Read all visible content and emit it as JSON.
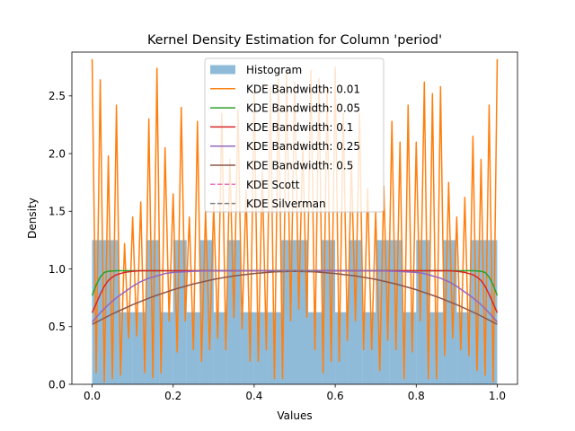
{
  "chart_data": {
    "type": "bar+line",
    "title": "Kernel Density Estimation for Column 'period'",
    "xlabel": "Values",
    "ylabel": "Density",
    "xlim": [
      -0.05,
      1.05
    ],
    "ylim": [
      0,
      2.88
    ],
    "xticks": [
      "0.0",
      "0.2",
      "0.4",
      "0.6",
      "0.8",
      "1.0"
    ],
    "yticks": [
      "0.0",
      "0.5",
      "1.0",
      "1.5",
      "2.0",
      "2.5"
    ],
    "grid": false,
    "legend_position": "upper-center",
    "histogram": {
      "name": "Histogram",
      "color": "#1f77b4",
      "alpha": 0.5,
      "bin_edges": [
        0.0,
        0.0333,
        0.0667,
        0.1,
        0.1333,
        0.1667,
        0.2,
        0.2333,
        0.2667,
        0.3,
        0.3333,
        0.3667,
        0.4,
        0.4333,
        0.4667,
        0.5,
        0.5333,
        0.5667,
        0.6,
        0.6333,
        0.6667,
        0.7,
        0.7333,
        0.7667,
        0.8,
        0.8333,
        0.8667,
        0.9,
        0.9333,
        0.9667,
        1.0
      ],
      "values": [
        1.25,
        1.25,
        0.625,
        0.625,
        1.25,
        0.625,
        1.25,
        0.625,
        1.25,
        0.625,
        1.25,
        0.625,
        0.625,
        0.625,
        1.25,
        1.25,
        0.625,
        1.25,
        0.625,
        1.25,
        0.625,
        1.25,
        1.25,
        0.625,
        1.25,
        0.625,
        1.25,
        0.625,
        1.25,
        1.25
      ]
    },
    "series": [
      {
        "name": "KDE Bandwidth: 0.01",
        "color": "#ff7f0e",
        "dashed": false,
        "x": [
          0.0,
          0.01,
          0.02,
          0.03,
          0.04,
          0.05,
          0.06,
          0.07,
          0.08,
          0.09,
          0.1,
          0.11,
          0.12,
          0.13,
          0.14,
          0.15,
          0.16,
          0.17,
          0.18,
          0.19,
          0.2,
          0.21,
          0.22,
          0.23,
          0.24,
          0.25,
          0.26,
          0.27,
          0.28,
          0.29,
          0.3,
          0.31,
          0.32,
          0.33,
          0.34,
          0.35,
          0.36,
          0.37,
          0.38,
          0.39,
          0.4,
          0.41,
          0.42,
          0.43,
          0.44,
          0.45,
          0.46,
          0.47,
          0.48,
          0.49,
          0.5,
          0.51,
          0.52,
          0.53,
          0.54,
          0.55,
          0.56,
          0.57,
          0.58,
          0.59,
          0.6,
          0.61,
          0.62,
          0.63,
          0.64,
          0.65,
          0.66,
          0.67,
          0.68,
          0.69,
          0.7,
          0.71,
          0.72,
          0.73,
          0.74,
          0.75,
          0.76,
          0.77,
          0.78,
          0.79,
          0.8,
          0.81,
          0.82,
          0.83,
          0.84,
          0.85,
          0.86,
          0.87,
          0.88,
          0.89,
          0.9,
          0.91,
          0.92,
          0.93,
          0.94,
          0.95,
          0.96,
          0.97,
          0.98,
          0.99,
          1.0
        ],
        "y": [
          2.82,
          0.1,
          2.64,
          0.02,
          1.98,
          0.05,
          2.42,
          0.08,
          1.22,
          0.4,
          1.45,
          0.42,
          1.58,
          0.1,
          2.3,
          0.06,
          2.74,
          0.1,
          2.05,
          0.55,
          1.65,
          0.28,
          2.4,
          0.55,
          1.45,
          0.3,
          2.28,
          0.2,
          1.5,
          0.3,
          1.55,
          0.4,
          2.35,
          0.3,
          1.95,
          0.58,
          2.38,
          0.48,
          1.68,
          0.2,
          2.55,
          0.2,
          1.85,
          0.3,
          2.58,
          0.05,
          2.65,
          0.05,
          2.72,
          0.55,
          2.62,
          0.65,
          2.1,
          0.58,
          2.72,
          0.3,
          2.65,
          0.1,
          2.58,
          0.2,
          2.75,
          0.2,
          2.35,
          0.38,
          1.92,
          0.55,
          2.35,
          0.3,
          1.7,
          0.3,
          1.5,
          0.12,
          1.72,
          0.38,
          2.28,
          0.3,
          2.1,
          0.05,
          2.42,
          0.28,
          2.1,
          0.55,
          2.62,
          0.05,
          2.52,
          0.05,
          2.58,
          0.25,
          1.75,
          0.4,
          1.45,
          0.3,
          1.62,
          0.25,
          2.15,
          0.12,
          1.95,
          0.08,
          2.42,
          0.02,
          2.82
        ]
      },
      {
        "name": "KDE Bandwidth: 0.05",
        "color": "#2ca02c",
        "dashed": false,
        "x": [
          0.0,
          0.01,
          0.02,
          0.03,
          0.04,
          0.06,
          0.08,
          0.1,
          0.2,
          0.5,
          0.8,
          0.9,
          0.92,
          0.94,
          0.96,
          0.97,
          0.98,
          0.99,
          1.0
        ],
        "y": [
          0.77,
          0.86,
          0.93,
          0.97,
          0.98,
          0.985,
          0.985,
          0.985,
          0.985,
          0.985,
          0.985,
          0.985,
          0.985,
          0.985,
          0.98,
          0.97,
          0.93,
          0.86,
          0.77
        ]
      },
      {
        "name": "KDE Bandwidth: 0.1",
        "color": "#d62728",
        "dashed": false,
        "x": [
          0.0,
          0.01,
          0.02,
          0.03,
          0.04,
          0.05,
          0.06,
          0.08,
          0.1,
          0.12,
          0.15,
          0.2,
          0.5,
          0.8,
          0.85,
          0.88,
          0.9,
          0.92,
          0.94,
          0.95,
          0.96,
          0.97,
          0.98,
          0.99,
          1.0
        ],
        "y": [
          0.62,
          0.7,
          0.78,
          0.85,
          0.9,
          0.93,
          0.95,
          0.97,
          0.98,
          0.985,
          0.985,
          0.985,
          0.985,
          0.985,
          0.985,
          0.985,
          0.98,
          0.97,
          0.95,
          0.93,
          0.9,
          0.85,
          0.78,
          0.7,
          0.62
        ]
      },
      {
        "name": "KDE Bandwidth: 0.25",
        "color": "#9467bd",
        "dashed": false,
        "x": [
          0.0,
          0.02,
          0.04,
          0.06,
          0.08,
          0.1,
          0.12,
          0.14,
          0.16,
          0.18,
          0.2,
          0.25,
          0.3,
          0.5,
          0.7,
          0.75,
          0.8,
          0.82,
          0.84,
          0.86,
          0.88,
          0.9,
          0.92,
          0.94,
          0.96,
          0.98,
          1.0
        ],
        "y": [
          0.54,
          0.62,
          0.69,
          0.75,
          0.8,
          0.85,
          0.89,
          0.92,
          0.94,
          0.96,
          0.97,
          0.98,
          0.985,
          0.985,
          0.985,
          0.98,
          0.97,
          0.96,
          0.94,
          0.92,
          0.89,
          0.85,
          0.8,
          0.75,
          0.69,
          0.62,
          0.54
        ]
      },
      {
        "name": "KDE Bandwidth: 0.5",
        "color": "#8c564b",
        "dashed": false,
        "x": [
          0.0,
          0.05,
          0.1,
          0.15,
          0.2,
          0.25,
          0.3,
          0.35,
          0.4,
          0.45,
          0.5,
          0.55,
          0.6,
          0.65,
          0.7,
          0.75,
          0.8,
          0.85,
          0.9,
          0.95,
          1.0
        ],
        "y": [
          0.52,
          0.61,
          0.69,
          0.76,
          0.82,
          0.87,
          0.91,
          0.94,
          0.96,
          0.975,
          0.98,
          0.975,
          0.96,
          0.94,
          0.91,
          0.87,
          0.82,
          0.76,
          0.69,
          0.61,
          0.52
        ]
      },
      {
        "name": "KDE Scott",
        "color": "#e377c2",
        "dashed": true,
        "x": [
          0.45,
          0.5,
          0.55
        ],
        "y": [
          0.985,
          0.985,
          0.985
        ]
      },
      {
        "name": "KDE Silverman",
        "color": "#7f7f7f",
        "dashed": true,
        "x": [
          0.45,
          0.5,
          0.55
        ],
        "y": [
          0.985,
          0.985,
          0.985
        ]
      }
    ]
  }
}
